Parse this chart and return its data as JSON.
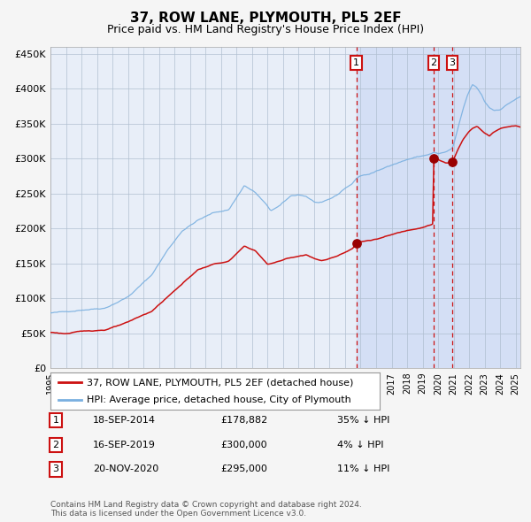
{
  "title": "37, ROW LANE, PLYMOUTH, PL5 2EF",
  "subtitle": "Price paid vs. HM Land Registry's House Price Index (HPI)",
  "legend_line1": "37, ROW LANE, PLYMOUTH, PL5 2EF (detached house)",
  "legend_line2": "HPI: Average price, detached house, City of Plymouth",
  "footer": "Contains HM Land Registry data © Crown copyright and database right 2024.\nThis data is licensed under the Open Government Licence v3.0.",
  "transactions": [
    {
      "num": 1,
      "date": "18-SEP-2014",
      "price": "178,882",
      "pct": "35%"
    },
    {
      "num": 2,
      "date": "16-SEP-2019",
      "price": "300,000",
      "pct": "4%"
    },
    {
      "num": 3,
      "date": "20-NOV-2020",
      "price": "295,000",
      "pct": "11%"
    }
  ],
  "sale_dates_decimal": [
    2014.72,
    2019.71,
    2020.9
  ],
  "sale_prices": [
    178882,
    300000,
    295000
  ],
  "shade_start": 2014.72,
  "ylim": [
    0,
    460000
  ],
  "xlim_start": 1995.0,
  "xlim_end": 2025.3,
  "yticks": [
    0,
    50000,
    100000,
    150000,
    200000,
    250000,
    300000,
    350000,
    400000,
    450000
  ],
  "ytick_labels": [
    "£0",
    "£50K",
    "£100K",
    "£150K",
    "£200K",
    "£250K",
    "£300K",
    "£350K",
    "£400K",
    "£450K"
  ],
  "xticks": [
    1995,
    1996,
    1997,
    1998,
    1999,
    2000,
    2001,
    2002,
    2003,
    2004,
    2005,
    2006,
    2007,
    2008,
    2009,
    2010,
    2011,
    2012,
    2013,
    2014,
    2015,
    2016,
    2017,
    2018,
    2019,
    2020,
    2021,
    2022,
    2023,
    2024,
    2025
  ],
  "bg_color": "#f5f5f5",
  "plot_bg": "#e8eef8",
  "shade_color": "#d4dff5",
  "grid_color": "#b0bfd0",
  "hpi_color": "#7ab0e0",
  "price_color": "#cc1111",
  "dot_color": "#990000",
  "vline_color": "#cc1111",
  "box_color": "#cc1111"
}
